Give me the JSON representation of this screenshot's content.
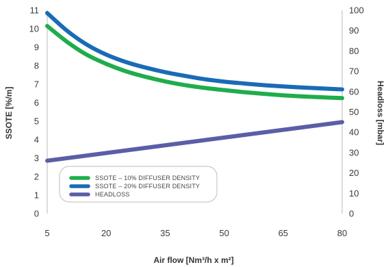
{
  "chart_data": {
    "type": "line",
    "xlabel": "Air flow [Nm³/h x m²]",
    "ylabel_left": "SSOTE [%/m]",
    "ylabel_right": "Headloss [mbar]",
    "x_ticks": [
      5,
      20,
      35,
      50,
      65,
      80
    ],
    "y_left_ticks": [
      0,
      1,
      2,
      3,
      4,
      5,
      6,
      7,
      8,
      9,
      10,
      11
    ],
    "y_right_ticks": [
      0,
      10,
      20,
      30,
      40,
      50,
      60,
      70,
      80,
      90,
      100
    ],
    "xlim": [
      5,
      80
    ],
    "ylim_left": [
      0,
      11
    ],
    "ylim_right": [
      0,
      100
    ],
    "grid": false,
    "legend_placement": "bottom-left",
    "series": [
      {
        "name": "SSOTE – 10% DIFFUSER DENSITY",
        "axis": "left",
        "color": "#1fad4b",
        "x": [
          5,
          10,
          15,
          20,
          25,
          30,
          35,
          40,
          45,
          50,
          55,
          60,
          65,
          70,
          75,
          80
        ],
        "y": [
          10.15,
          9.3,
          8.6,
          8.1,
          7.7,
          7.4,
          7.15,
          6.95,
          6.8,
          6.68,
          6.57,
          6.48,
          6.4,
          6.34,
          6.29,
          6.25
        ]
      },
      {
        "name": "SSOTE – 20% DIFFUSER DENSITY",
        "axis": "left",
        "color": "#1a6bb5",
        "x": [
          5,
          10,
          15,
          20,
          25,
          30,
          35,
          40,
          45,
          50,
          55,
          60,
          65,
          70,
          75,
          80
        ],
        "y": [
          10.85,
          9.9,
          9.15,
          8.6,
          8.2,
          7.9,
          7.65,
          7.45,
          7.27,
          7.14,
          7.04,
          6.95,
          6.88,
          6.82,
          6.77,
          6.72
        ]
      },
      {
        "name": "HEADLOSS",
        "axis": "right",
        "color": "#5b5ea6",
        "x": [
          5,
          80
        ],
        "y": [
          26,
          45
        ]
      }
    ]
  }
}
